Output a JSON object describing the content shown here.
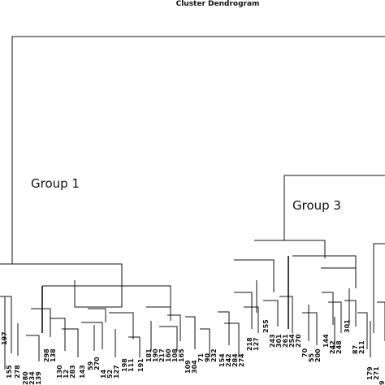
{
  "title": "Cluster Dendrogram",
  "groups": [
    "Group 1",
    "Group 3"
  ],
  "leaves": {
    "left": [
      "197",
      "155",
      "278",
      "280",
      "234",
      "139"
    ],
    "middle": [
      "298",
      "138",
      "130",
      "12",
      "283",
      "143",
      "59",
      "270",
      "14",
      "52",
      "127",
      "198",
      "111",
      "191",
      "181",
      "190",
      "217",
      "160",
      "108",
      "165",
      "109",
      "304",
      "71",
      "90",
      "232"
    ],
    "right": [
      "154",
      "242",
      "284",
      "274",
      "218",
      "127",
      "255",
      "243",
      "301",
      "261",
      "254",
      "270",
      "70",
      "55",
      "200",
      "144",
      "242",
      "248",
      "301",
      "87",
      "211",
      "179",
      "271",
      "9"
    ]
  }
}
